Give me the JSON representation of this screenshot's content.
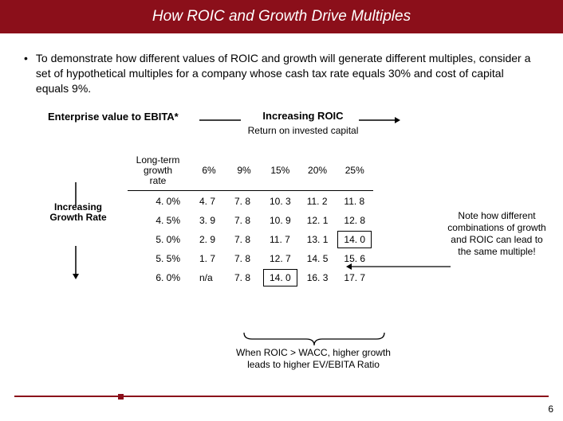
{
  "title": "How ROIC and Growth Drive Multiples",
  "bullet": "To demonstrate how different values of ROIC and growth will generate different multiples, consider a set of hypothetical multiples for a company whose cash tax rate equals 30% and cost of capital equals 9%.",
  "evLabel": "Enterprise value to EBITA*",
  "roicHead": "Increasing ROIC",
  "roicSub": "Return on invested capital",
  "growthHead": "Increasing Growth Rate",
  "rowLabel": "Long-term growth rate",
  "columns": [
    "6%",
    "9%",
    "15%",
    "20%",
    "25%"
  ],
  "rows": [
    {
      "g": "4. 0%",
      "v": [
        "4. 7",
        "7. 8",
        "10. 3",
        "11. 2",
        "11. 8"
      ]
    },
    {
      "g": "4. 5%",
      "v": [
        "3. 9",
        "7. 8",
        "10. 9",
        "12. 1",
        "12. 8"
      ]
    },
    {
      "g": "5. 0%",
      "v": [
        "2. 9",
        "7. 8",
        "11. 7",
        "13. 1",
        "14. 0"
      ]
    },
    {
      "g": "5. 5%",
      "v": [
        "1. 7",
        "7. 8",
        "12. 7",
        "14. 5",
        "15. 6"
      ]
    },
    {
      "g": "6. 0%",
      "v": [
        "n/a",
        "7. 8",
        "14. 0",
        "16. 3",
        "17. 7"
      ]
    }
  ],
  "boxed": [
    [
      2,
      4
    ],
    [
      4,
      2
    ]
  ],
  "sideNote": "Note how different combinations of growth and ROIC can lead to the same multiple!",
  "braceText": "When ROIC > WACC, higher growth leads to higher EV/EBITA Ratio",
  "pageNum": "6",
  "colors": {
    "accent": "#8b0f1a"
  }
}
